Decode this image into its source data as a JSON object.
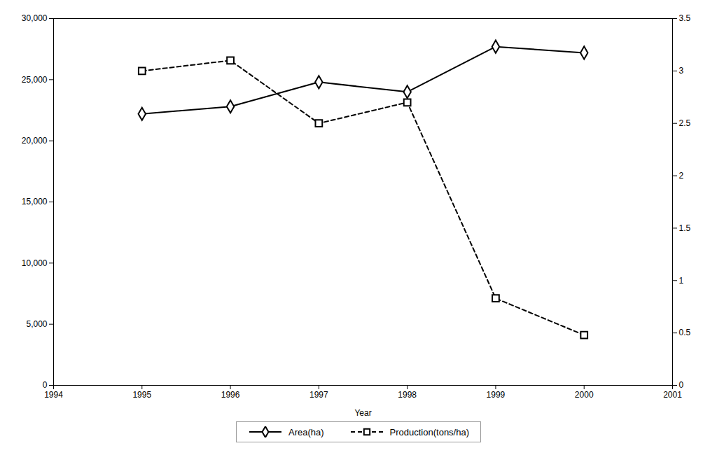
{
  "chart_data": {
    "type": "line",
    "x": [
      1995,
      1996,
      1997,
      1998,
      1999,
      2000
    ],
    "xlabel": "Year",
    "xlim": [
      1994,
      2001
    ],
    "xticks": [
      1994,
      1995,
      1996,
      1997,
      1998,
      1999,
      2000,
      2001
    ],
    "ylim": [
      0,
      30000
    ],
    "yticks": [
      0,
      {
        "value": 5000,
        "label": "5,000"
      },
      {
        "value": 10000,
        "label": "10,000"
      },
      {
        "value": 15000,
        "label": "15,000"
      },
      {
        "value": 20000,
        "label": "20,000"
      },
      {
        "value": 25000,
        "label": "25,000"
      },
      {
        "value": 30000,
        "label": "30,000"
      }
    ],
    "y2lim": [
      0,
      3.5
    ],
    "y2ticks": [
      0,
      0.5,
      1,
      1.5,
      2,
      2.5,
      3,
      3.5
    ],
    "grid": false,
    "legend": "bottom",
    "series": [
      {
        "name": "Area(ha)",
        "color": "#000000",
        "values": [
          22200,
          22800,
          24800,
          24000,
          27700,
          27200
        ],
        "marker": "diamond",
        "line_style": "solid"
      },
      {
        "name": "Production(tons/ha)",
        "color": "#000000",
        "values": [
          3.0,
          3.1,
          2.5,
          2.7,
          0.83,
          0.48
        ],
        "axis": "y2",
        "marker": "square",
        "line_style": "dashed"
      }
    ]
  }
}
